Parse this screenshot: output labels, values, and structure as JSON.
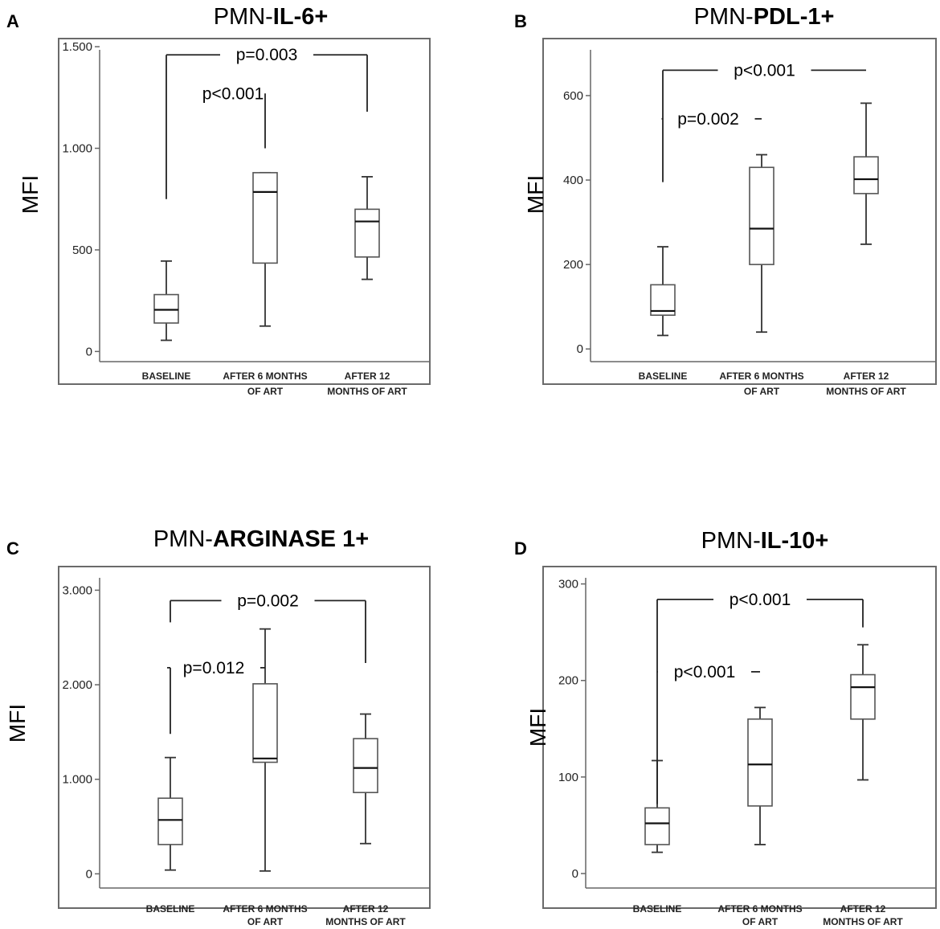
{
  "chart_data": [
    {
      "type": "box",
      "panel_letter": "A",
      "title_prefix": "PMN-",
      "title_bold": "IL-6+",
      "ylabel": "MFI",
      "ylim": [
        -50,
        1540
      ],
      "yticks": [
        0,
        500,
        1000,
        1500
      ],
      "ytick_labels": [
        "0",
        "500",
        "1.000",
        "1.500"
      ],
      "categories": [
        [
          "BASELINE"
        ],
        [
          "AFTER 6 MONTHS",
          "OF ART"
        ],
        [
          "AFTER 12",
          "MONTHS OF ART"
        ]
      ],
      "boxes": [
        {
          "min": 55,
          "q1": 140,
          "median": 205,
          "q3": 280,
          "max": 445
        },
        {
          "min": 125,
          "q1": 435,
          "median": 785,
          "q3": 880,
          "max": 880
        },
        {
          "min": 355,
          "q1": 465,
          "median": 640,
          "q3": 700,
          "max": 860
        }
      ],
      "annotations": [
        {
          "label": "p=0.003",
          "from": 0,
          "to": 2,
          "top": 1460,
          "left_bottom": 750,
          "right_bottom": 1180,
          "level": "outer"
        },
        {
          "label": "p<0.001",
          "from": 1,
          "to": 1,
          "top": 1270,
          "left_bottom": null,
          "right_bottom": 1000,
          "level": "inner"
        }
      ]
    },
    {
      "type": "box",
      "panel_letter": "B",
      "title_prefix": "PMN-",
      "title_bold": "PDL-1+",
      "ylabel": "MFI",
      "ylim": [
        -30,
        735
      ],
      "yticks": [
        0,
        200,
        400,
        600
      ],
      "ytick_labels": [
        "0",
        "200",
        "400",
        "600"
      ],
      "categories": [
        [
          "BASELINE"
        ],
        [
          "AFTER 6 MONTHS",
          "OF ART"
        ],
        [
          "AFTER 12",
          "MONTHS OF ART"
        ]
      ],
      "boxes": [
        {
          "min": 32,
          "q1": 80,
          "median": 90,
          "q3": 152,
          "max": 242
        },
        {
          "min": 40,
          "q1": 200,
          "median": 285,
          "q3": 430,
          "max": 460
        },
        {
          "min": 248,
          "q1": 368,
          "median": 402,
          "q3": 455,
          "max": 582
        }
      ],
      "annotations": [
        {
          "label": "p<0.001",
          "from": 0,
          "to": 2,
          "top": 660,
          "left_bottom": 395,
          "right_bottom": 660,
          "level": "outer"
        },
        {
          "label": "p=0.002",
          "from": 0,
          "to": 1,
          "top": 545,
          "left_bottom": null,
          "right_bottom": 545,
          "level": "inner"
        }
      ]
    },
    {
      "type": "box",
      "panel_letter": "C",
      "title_prefix": "PMN-",
      "title_bold": "ARGINASE 1+",
      "ylabel": "MFI",
      "ylim": [
        -150,
        3250
      ],
      "yticks": [
        0,
        1000,
        2000,
        3000
      ],
      "ytick_labels": [
        "0",
        "1.000",
        "2.000",
        "3.000"
      ],
      "categories": [
        [
          "BASELINE"
        ],
        [
          "AFTER 6 MONTHS",
          "OF ART"
        ],
        [
          "AFTER 12",
          "MONTHS OF ART"
        ]
      ],
      "boxes": [
        {
          "min": 40,
          "q1": 310,
          "median": 570,
          "q3": 800,
          "max": 1230
        },
        {
          "min": 30,
          "q1": 1180,
          "median": 1220,
          "q3": 2010,
          "max": 2590
        },
        {
          "min": 320,
          "q1": 860,
          "median": 1120,
          "q3": 1430,
          "max": 1690
        }
      ],
      "annotations": [
        {
          "label": "p=0.002",
          "from": 0,
          "to": 2,
          "top": 2890,
          "left_bottom": 2660,
          "right_bottom": 2230,
          "level": "outer"
        },
        {
          "label": "p=0.012",
          "from": 0,
          "to": 1,
          "top": 2180,
          "left_bottom": 1480,
          "right_bottom": null,
          "level": "inner"
        }
      ]
    },
    {
      "type": "box",
      "panel_letter": "D",
      "title_prefix": "PMN-",
      "title_bold": "IL-10+",
      "ylabel": "MFI",
      "ylim": [
        -15,
        318
      ],
      "yticks": [
        0,
        100,
        200,
        300
      ],
      "ytick_labels": [
        "0",
        "100",
        "200",
        "300"
      ],
      "categories": [
        [
          "BASELINE"
        ],
        [
          "AFTER 6 MONTHS",
          "OF ART"
        ],
        [
          "AFTER 12",
          "MONTHS OF ART"
        ]
      ],
      "boxes": [
        {
          "min": 22,
          "q1": 30,
          "median": 52,
          "q3": 68,
          "max": 117
        },
        {
          "min": 30,
          "q1": 70,
          "median": 113,
          "q3": 160,
          "max": 172
        },
        {
          "min": 97,
          "q1": 160,
          "median": 193,
          "q3": 206,
          "max": 237
        }
      ],
      "annotations": [
        {
          "label": "p<0.001",
          "from": 0,
          "to": 2,
          "top": 284,
          "left_bottom": 72,
          "right_bottom": 255,
          "level": "outer"
        },
        {
          "label": "p<0.001",
          "from": 0,
          "to": 1,
          "top": 209,
          "left_bottom": null,
          "right_bottom": 209,
          "level": "inner"
        }
      ]
    }
  ]
}
